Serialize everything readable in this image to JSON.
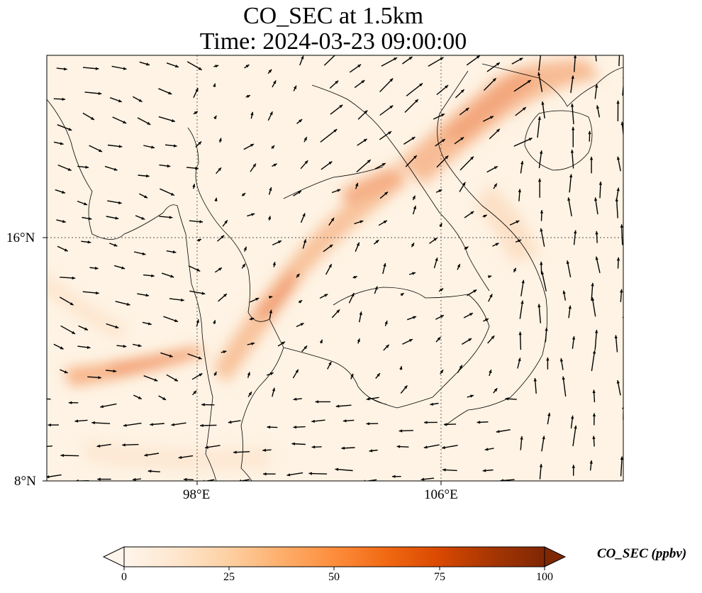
{
  "title": {
    "line1": "CO_SEC at 1.5km",
    "line2": "Time: 2024-03-23 09:00:00"
  },
  "axes": {
    "longitude_ticks": [
      "98°E",
      "106°E"
    ],
    "latitude_ticks": [
      "16°N",
      "8°N"
    ],
    "gridlines": "dotted"
  },
  "colorbar": {
    "label": "CO_SEC (ppbv)",
    "ticks": [
      "0",
      "25",
      "50",
      "75",
      "100"
    ],
    "colormap": [
      "#fff5eb",
      "#fee6ce",
      "#fdd0a2",
      "#fdae6b",
      "#fd8d3c",
      "#f16913",
      "#d94801",
      "#a63603",
      "#7f2704"
    ],
    "extend": "both"
  },
  "colors": {
    "coastline": "#000000",
    "wind_vectors": "#000000",
    "background_field": "#fef3e4"
  }
}
